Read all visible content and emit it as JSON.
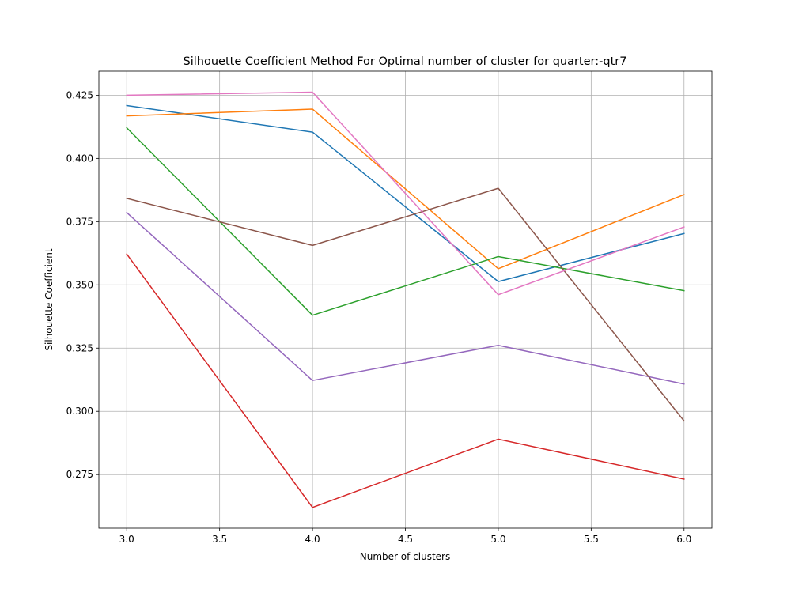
{
  "chart_data": {
    "type": "line",
    "title": "Silhouette Coefficient Method For Optimal number of cluster for quarter:-qtr7",
    "xlabel": "Number of clusters",
    "ylabel": "Silhouette Coefficient",
    "x": [
      3,
      4,
      5,
      6
    ],
    "xlim": [
      2.85,
      6.15
    ],
    "ylim": [
      0.2538,
      0.4345
    ],
    "xticks": [
      3.0,
      3.5,
      4.0,
      4.5,
      5.0,
      5.5,
      6.0
    ],
    "yticks": [
      0.275,
      0.3,
      0.325,
      0.35,
      0.375,
      0.4,
      0.425
    ],
    "xtick_labels": [
      "3.0",
      "3.5",
      "4.0",
      "4.5",
      "5.0",
      "5.5",
      "6.0"
    ],
    "ytick_labels": [
      "0.275",
      "0.300",
      "0.325",
      "0.350",
      "0.375",
      "0.400",
      "0.425"
    ],
    "grid": true,
    "series": [
      {
        "color": "#1f77b4",
        "values": [
          0.4209,
          0.4104,
          0.3513,
          0.3703
        ]
      },
      {
        "color": "#ff7f0e",
        "values": [
          0.4168,
          0.4195,
          0.3564,
          0.3857
        ]
      },
      {
        "color": "#2ca02c",
        "values": [
          0.4121,
          0.338,
          0.3612,
          0.3477
        ]
      },
      {
        "color": "#d62728",
        "values": [
          0.3622,
          0.262,
          0.289,
          0.2732
        ]
      },
      {
        "color": "#9467bd",
        "values": [
          0.3786,
          0.3122,
          0.3261,
          0.3108
        ]
      },
      {
        "color": "#8c564b",
        "values": [
          0.3842,
          0.3656,
          0.3882,
          0.2962
        ]
      },
      {
        "color": "#e377c2",
        "values": [
          0.425,
          0.4262,
          0.3461,
          0.3729
        ]
      }
    ]
  }
}
